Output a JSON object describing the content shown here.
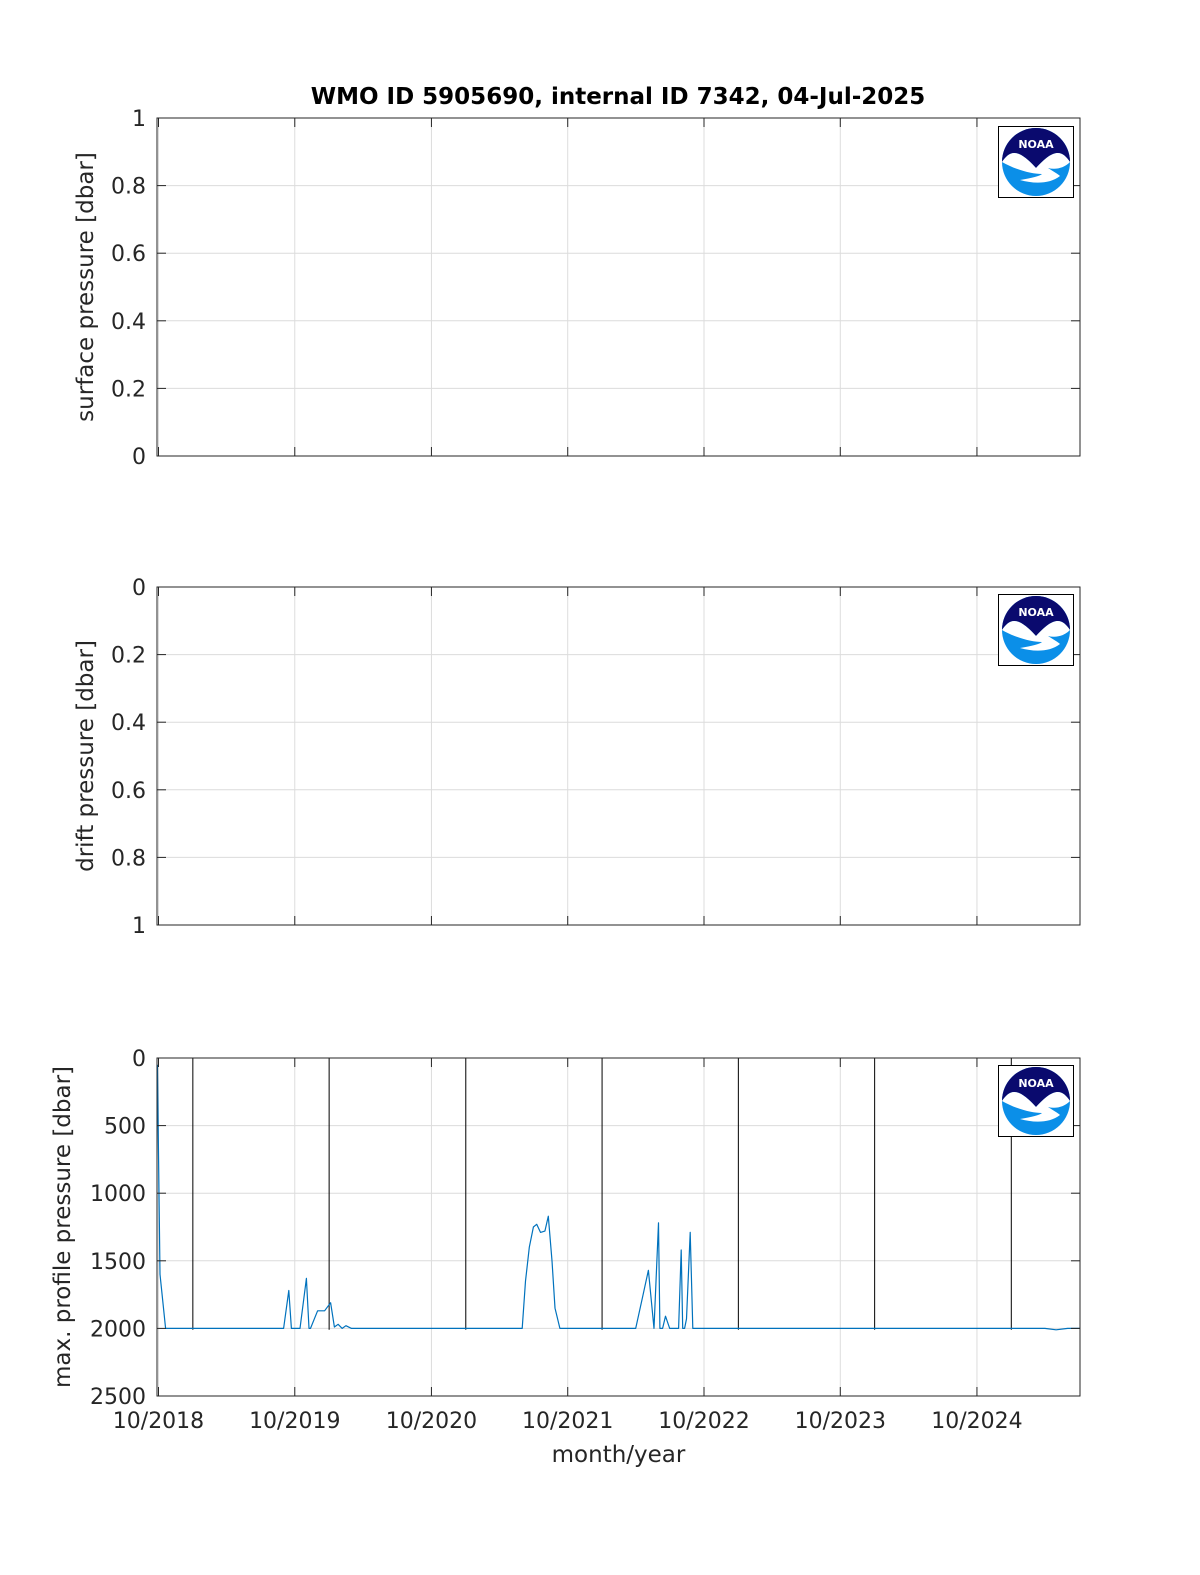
{
  "figure": {
    "title": "WMO ID 5905690, internal ID 7342, 04-Jul-2025",
    "logo_text": "NOAA"
  },
  "colors": {
    "series": "#0072BD",
    "grid": "#dcdcdc",
    "axes": "#262626",
    "cycle_marker": "#000000",
    "logo_navy": "#0a0a6e",
    "logo_sky": "#0b8fe8"
  },
  "chart_data": [
    {
      "type": "line",
      "ylabel": "surface pressure [dbar]",
      "xlim": [
        "2018-09-27",
        "2025-07-04"
      ],
      "ylim": [
        0,
        1
      ],
      "y_reversed": false,
      "yticks": [
        0,
        0.2,
        0.4,
        0.6,
        0.8,
        1
      ],
      "ytick_labels": [
        "0",
        "0.2",
        "0.4",
        "0.6",
        "0.8",
        "1"
      ],
      "xticks": [
        "2018-10-01",
        "2019-10-01",
        "2020-10-01",
        "2021-10-01",
        "2022-10-01",
        "2023-10-01",
        "2024-10-01"
      ],
      "xtick_labels": [],
      "grid": true,
      "series": []
    },
    {
      "type": "line",
      "ylabel": "drift pressure [dbar]",
      "xlim": [
        "2018-09-27",
        "2025-07-04"
      ],
      "ylim": [
        0,
        1
      ],
      "y_reversed": true,
      "yticks": [
        0,
        0.2,
        0.4,
        0.6,
        0.8,
        1
      ],
      "ytick_labels": [
        "0",
        "0.2",
        "0.4",
        "0.6",
        "0.8",
        "1"
      ],
      "xticks": [
        "2018-10-01",
        "2019-10-01",
        "2020-10-01",
        "2021-10-01",
        "2022-10-01",
        "2023-10-01",
        "2024-10-01"
      ],
      "xtick_labels": [],
      "grid": true,
      "series": []
    },
    {
      "type": "line",
      "ylabel": "max. profile pressure [dbar]",
      "xlabel": "month/year",
      "xlim": [
        "2018-09-27",
        "2025-07-04"
      ],
      "ylim": [
        0,
        2500
      ],
      "y_reversed": true,
      "yticks": [
        0,
        500,
        1000,
        1500,
        2000,
        2500
      ],
      "ytick_labels": [
        "0",
        "500",
        "1000",
        "1500",
        "2000",
        "2500"
      ],
      "xticks": [
        "2018-10-01",
        "2019-10-01",
        "2020-10-01",
        "2021-10-01",
        "2022-10-01",
        "2023-10-01",
        "2024-10-01"
      ],
      "xtick_labels": [
        "10/2018",
        "10/2019",
        "10/2020",
        "10/2021",
        "10/2022",
        "10/2023",
        "10/2024"
      ],
      "grid": true,
      "vlines": [
        "2019-01-01",
        "2020-01-01",
        "2021-01-01",
        "2022-01-01",
        "2023-01-01",
        "2024-01-01",
        "2025-01-01"
      ],
      "series": [
        {
          "x": [
            "2018-09-28",
            "2018-10-05",
            "2018-10-20",
            "2018-11-15",
            "2018-12-20",
            "2019-02-01",
            "2019-04-01",
            "2019-06-01",
            "2019-08-01",
            "2019-09-01",
            "2019-09-15",
            "2019-09-22",
            "2019-10-01",
            "2019-10-15",
            "2019-11-01",
            "2019-11-08",
            "2019-11-12",
            "2019-12-01",
            "2019-12-20",
            "2020-01-05",
            "2020-01-15",
            "2020-01-25",
            "2020-02-05",
            "2020-02-15",
            "2020-03-01",
            "2020-04-01",
            "2020-05-01",
            "2020-06-01",
            "2020-07-01",
            "2020-08-01",
            "2020-09-01",
            "2020-10-01",
            "2020-11-01",
            "2020-12-01",
            "2021-01-01",
            "2021-02-01",
            "2021-03-01",
            "2021-04-01",
            "2021-05-01",
            "2021-06-01",
            "2021-06-10",
            "2021-06-20",
            "2021-07-01",
            "2021-07-10",
            "2021-07-20",
            "2021-08-01",
            "2021-08-10",
            "2021-08-20",
            "2021-08-28",
            "2021-09-10",
            "2021-09-25",
            "2021-10-05",
            "2021-11-01",
            "2021-12-01",
            "2022-01-01",
            "2022-02-01",
            "2022-03-01",
            "2022-04-01",
            "2022-04-20",
            "2022-05-05",
            "2022-05-20",
            "2022-06-01",
            "2022-06-05",
            "2022-06-12",
            "2022-06-20",
            "2022-07-01",
            "2022-07-15",
            "2022-07-25",
            "2022-08-01",
            "2022-08-05",
            "2022-08-10",
            "2022-08-15",
            "2022-08-25",
            "2022-09-01",
            "2022-09-15",
            "2022-10-15",
            "2022-12-01",
            "2023-02-01",
            "2023-04-01",
            "2023-06-01",
            "2023-08-01",
            "2023-10-01",
            "2023-12-01",
            "2024-02-01",
            "2024-04-01",
            "2024-06-01",
            "2024-08-01",
            "2024-10-01",
            "2024-11-01",
            "2024-12-01",
            "2025-01-01",
            "2025-02-01",
            "2025-03-01",
            "2025-04-01",
            "2025-05-01",
            "2025-06-01",
            "2025-07-03"
          ],
          "y": [
            50,
            1600,
            2000,
            2000,
            2000,
            2000,
            2000,
            2000,
            2000,
            2000,
            1720,
            2000,
            2000,
            2000,
            1630,
            2000,
            2000,
            1870,
            1870,
            1810,
            1990,
            1970,
            2000,
            1980,
            2000,
            2000,
            2000,
            2000,
            2000,
            2000,
            2000,
            2000,
            2000,
            2000,
            2000,
            2000,
            2000,
            2000,
            2000,
            2000,
            1650,
            1400,
            1250,
            1230,
            1290,
            1280,
            1170,
            1500,
            1850,
            2000,
            2000,
            2000,
            2000,
            2000,
            2000,
            2000,
            2000,
            2000,
            1760,
            1570,
            2000,
            1220,
            2000,
            2000,
            1910,
            2000,
            2000,
            2000,
            1420,
            2000,
            2000,
            1930,
            1290,
            2000,
            2000,
            2000,
            2000,
            2000,
            2000,
            2000,
            2000,
            2000,
            2000,
            2000,
            2000,
            2000,
            2000,
            2000,
            2000,
            2000,
            2000,
            2000,
            2000,
            2000,
            2010,
            2000,
            2000
          ]
        }
      ]
    }
  ]
}
